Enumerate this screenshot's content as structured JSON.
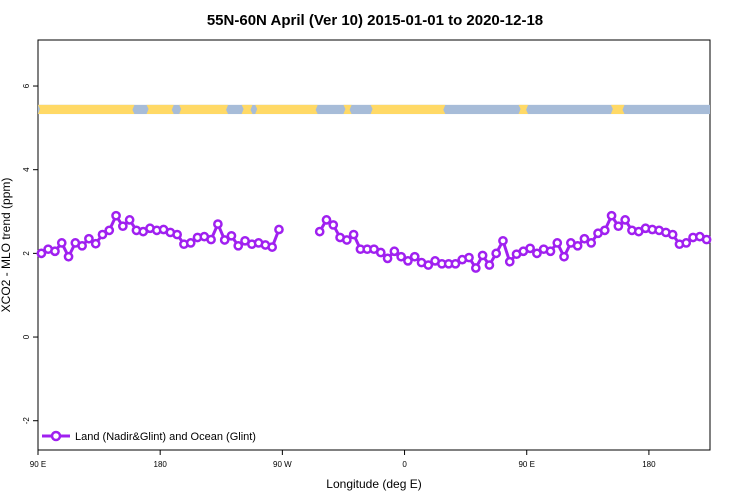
{
  "chart_data": {
    "type": "line",
    "title": "55N-60N April (Ver 10)   2015-01-01 to 2020-12-18",
    "xlabel": "Longitude (deg E)",
    "ylabel": "XCO2 - MLO trend (ppm)",
    "xlim": [
      0,
      495
    ],
    "ylim": [
      -2.7,
      7.1
    ],
    "x_ticks": [
      {
        "value": 0,
        "label": "90 E"
      },
      {
        "value": 90,
        "label": "180"
      },
      {
        "value": 180,
        "label": "90 W"
      },
      {
        "value": 270,
        "label": "0"
      },
      {
        "value": 360,
        "label": "90 E"
      },
      {
        "value": 450,
        "label": "180"
      }
    ],
    "y_ticks": [
      -2,
      0,
      2,
      4,
      6
    ],
    "grid": false,
    "legend_position": "bottom-left",
    "line_color": "#a020f0",
    "land_color": "#ffd966",
    "ocean_color": "#a7bcd8",
    "map_strip_y": [
      5.33,
      5.55
    ],
    "series": [
      {
        "name": "Land (Nadir&Glint) and Ocean (Glint)",
        "segments": [
          [
            [
              2.5,
              2.0
            ],
            [
              7.5,
              2.1
            ],
            [
              12.5,
              2.05
            ],
            [
              17.5,
              2.25
            ],
            [
              22.5,
              1.92
            ],
            [
              27.5,
              2.25
            ],
            [
              32.5,
              2.18
            ],
            [
              37.5,
              2.35
            ],
            [
              42.5,
              2.23
            ],
            [
              47.5,
              2.45
            ],
            [
              52.5,
              2.55
            ],
            [
              57.5,
              2.9
            ],
            [
              62.5,
              2.65
            ],
            [
              67.5,
              2.8
            ],
            [
              72.5,
              2.55
            ],
            [
              77.5,
              2.52
            ],
            [
              82.5,
              2.6
            ],
            [
              87.5,
              2.55
            ],
            [
              92.5,
              2.57
            ],
            [
              97.5,
              2.5
            ],
            [
              102.5,
              2.45
            ],
            [
              107.5,
              2.22
            ],
            [
              112.5,
              2.25
            ],
            [
              117.5,
              2.38
            ],
            [
              122.5,
              2.4
            ],
            [
              127.5,
              2.33
            ],
            [
              132.5,
              2.7
            ],
            [
              137.5,
              2.32
            ],
            [
              142.5,
              2.42
            ],
            [
              147.5,
              2.18
            ],
            [
              152.5,
              2.3
            ],
            [
              157.5,
              2.22
            ],
            [
              162.5,
              2.25
            ],
            [
              167.5,
              2.2
            ],
            [
              172.5,
              2.15
            ],
            [
              177.5,
              2.57
            ]
          ],
          [
            [
              207.5,
              2.52
            ],
            [
              212.5,
              2.8
            ],
            [
              217.5,
              2.68
            ],
            [
              222.5,
              2.38
            ],
            [
              227.5,
              2.32
            ],
            [
              232.5,
              2.45
            ],
            [
              237.5,
              2.1
            ],
            [
              242.5,
              2.1
            ],
            [
              247.5,
              2.1
            ],
            [
              252.5,
              2.02
            ],
            [
              257.5,
              1.88
            ],
            [
              262.5,
              2.05
            ],
            [
              267.5,
              1.92
            ],
            [
              272.5,
              1.82
            ],
            [
              277.5,
              1.92
            ],
            [
              282.5,
              1.78
            ],
            [
              287.5,
              1.72
            ],
            [
              292.5,
              1.82
            ],
            [
              297.5,
              1.75
            ],
            [
              302.5,
              1.75
            ],
            [
              307.5,
              1.75
            ],
            [
              312.5,
              1.85
            ],
            [
              317.5,
              1.9
            ],
            [
              322.5,
              1.65
            ],
            [
              327.5,
              1.95
            ],
            [
              332.5,
              1.72
            ],
            [
              337.5,
              2.0
            ],
            [
              342.5,
              2.3
            ],
            [
              347.5,
              1.8
            ],
            [
              352.5,
              1.98
            ],
            [
              357.5,
              2.05
            ],
            [
              362.5,
              2.12
            ],
            [
              367.5,
              2.0
            ],
            [
              372.5,
              2.1
            ],
            [
              377.5,
              2.05
            ],
            [
              382.5,
              2.25
            ],
            [
              387.5,
              1.92
            ],
            [
              392.5,
              2.25
            ],
            [
              397.5,
              2.18
            ],
            [
              402.5,
              2.35
            ],
            [
              407.5,
              2.25
            ],
            [
              412.5,
              2.48
            ],
            [
              417.5,
              2.55
            ],
            [
              422.5,
              2.9
            ],
            [
              427.5,
              2.65
            ],
            [
              432.5,
              2.8
            ],
            [
              437.5,
              2.55
            ],
            [
              442.5,
              2.52
            ],
            [
              447.5,
              2.6
            ],
            [
              452.5,
              2.57
            ],
            [
              457.5,
              2.55
            ],
            [
              462.5,
              2.5
            ],
            [
              467.5,
              2.45
            ],
            [
              472.5,
              2.22
            ],
            [
              477.5,
              2.25
            ],
            [
              482.5,
              2.38
            ],
            [
              487.5,
              2.4
            ],
            [
              492.5,
              2.33
            ]
          ]
        ]
      }
    ]
  }
}
